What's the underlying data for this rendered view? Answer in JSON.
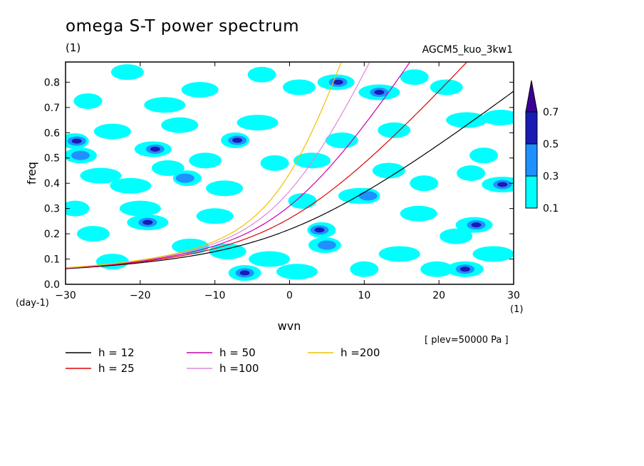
{
  "title": "omega S-T power spectrum",
  "units_top": "(1)",
  "run_name": "AGCM5_kuo_3kw1",
  "plev_note": "[ plev=50000 Pa ]",
  "chart_data": {
    "type": "contour",
    "xlabel": "wvn",
    "ylabel": "freq",
    "x_unit": "(1)",
    "y_unit": "(day-1)",
    "xlim": [
      -30,
      30
    ],
    "ylim": [
      0,
      0.88
    ],
    "x_ticks": [
      -30,
      -20,
      -10,
      0,
      10,
      20,
      30
    ],
    "x_tick_labels": [
      "-30",
      "-20",
      "-10",
      "0",
      "10",
      "20",
      "30"
    ],
    "y_ticks": [
      0,
      0.1,
      0.2,
      0.3,
      0.4,
      0.5,
      0.6,
      0.7,
      0.8
    ],
    "y_tick_labels": [
      "0.0",
      "0.1",
      "0.2",
      "0.3",
      "0.4",
      "0.5",
      "0.6",
      "0.7",
      "0.8"
    ],
    "contour_levels": [
      0.1,
      0.3,
      0.5,
      0.7
    ],
    "colorbar_labels": [
      "0.1",
      "0.3",
      "0.5",
      "0.7"
    ],
    "level_colors": [
      "#00ffff",
      "#1e90ff",
      "#1a1ab4",
      "#3c0096"
    ],
    "kelvin_wave_curves": [
      {
        "name": "h = 12",
        "h": 12,
        "color": "#000000"
      },
      {
        "name": "h = 25",
        "h": 25,
        "color": "#e00000"
      },
      {
        "name": "h = 50",
        "h": 50,
        "color": "#cc00aa"
      },
      {
        "name": "h =100",
        "h": 100,
        "color": "#dd88dd"
      },
      {
        "name": "h =200",
        "h": 200,
        "color": "#f0c000"
      }
    ],
    "patches": [
      {
        "x": -28.5,
        "y": 0.567,
        "level": 3
      },
      {
        "x": -28,
        "y": 0.51,
        "level": 2
      },
      {
        "x": -24,
        "y": 0.605,
        "level": 1
      },
      {
        "x": -25,
        "y": 0.43,
        "level": 1
      },
      {
        "x": -27,
        "y": 0.725,
        "level": 1
      },
      {
        "x": -22,
        "y": 0.84,
        "level": 1
      },
      {
        "x": -18,
        "y": 0.535,
        "level": 3
      },
      {
        "x": -19,
        "y": 0.245,
        "level": 3
      },
      {
        "x": -14,
        "y": 0.42,
        "level": 2
      },
      {
        "x": -16,
        "y": 0.46,
        "level": 1
      },
      {
        "x": -12,
        "y": 0.77,
        "level": 1
      },
      {
        "x": -17,
        "y": 0.71,
        "level": 1
      },
      {
        "x": -7,
        "y": 0.57,
        "level": 3
      },
      {
        "x": -6,
        "y": 0.045,
        "level": 3
      },
      {
        "x": -9,
        "y": 0.38,
        "level": 1
      },
      {
        "x": -4,
        "y": 0.64,
        "level": 1
      },
      {
        "x": -2,
        "y": 0.48,
        "level": 1
      },
      {
        "x": 1,
        "y": 0.78,
        "level": 1
      },
      {
        "x": 6.5,
        "y": 0.8,
        "level": 3
      },
      {
        "x": 12,
        "y": 0.76,
        "level": 3
      },
      {
        "x": 4,
        "y": 0.215,
        "level": 3
      },
      {
        "x": 5,
        "y": 0.155,
        "level": 2
      },
      {
        "x": 3,
        "y": 0.49,
        "level": 1
      },
      {
        "x": 9,
        "y": 0.35,
        "level": 1
      },
      {
        "x": 10.5,
        "y": 0.35,
        "level": 2
      },
      {
        "x": 14,
        "y": 0.61,
        "level": 1
      },
      {
        "x": 17,
        "y": 0.28,
        "level": 1
      },
      {
        "x": 24,
        "y": 0.65,
        "level": 1
      },
      {
        "x": 26,
        "y": 0.51,
        "level": 1
      },
      {
        "x": 22,
        "y": 0.19,
        "level": 1
      },
      {
        "x": 25,
        "y": 0.235,
        "level": 3
      },
      {
        "x": 28.5,
        "y": 0.395,
        "level": 3
      },
      {
        "x": 24,
        "y": 0.44,
        "level": 1
      },
      {
        "x": 20,
        "y": 0.06,
        "level": 1
      },
      {
        "x": 23.5,
        "y": 0.06,
        "level": 3
      },
      {
        "x": 27,
        "y": 0.12,
        "level": 1
      },
      {
        "x": 17,
        "y": 0.82,
        "level": 1
      },
      {
        "x": 21,
        "y": 0.78,
        "level": 1
      },
      {
        "x": 28,
        "y": 0.66,
        "level": 1
      },
      {
        "x": 15,
        "y": 0.12,
        "level": 1
      },
      {
        "x": 10,
        "y": 0.06,
        "level": 1
      },
      {
        "x": -24,
        "y": 0.09,
        "level": 1
      },
      {
        "x": -13,
        "y": 0.15,
        "level": 1
      },
      {
        "x": -20,
        "y": 0.3,
        "level": 1
      },
      {
        "x": -29,
        "y": 0.3,
        "level": 1
      },
      {
        "x": -26,
        "y": 0.2,
        "level": 1
      },
      {
        "x": -10,
        "y": 0.27,
        "level": 1
      },
      {
        "x": -3,
        "y": 0.1,
        "level": 1
      },
      {
        "x": 2,
        "y": 0.33,
        "level": 1
      },
      {
        "x": 7,
        "y": 0.57,
        "level": 1
      },
      {
        "x": -15,
        "y": 0.63,
        "level": 1
      },
      {
        "x": -21,
        "y": 0.39,
        "level": 1
      },
      {
        "x": 18,
        "y": 0.4,
        "level": 1
      },
      {
        "x": 13,
        "y": 0.45,
        "level": 1
      },
      {
        "x": -8,
        "y": 0.13,
        "level": 1
      },
      {
        "x": 1,
        "y": 0.05,
        "level": 1
      },
      {
        "x": -4,
        "y": 0.83,
        "level": 1
      },
      {
        "x": -11,
        "y": 0.49,
        "level": 1
      }
    ]
  }
}
